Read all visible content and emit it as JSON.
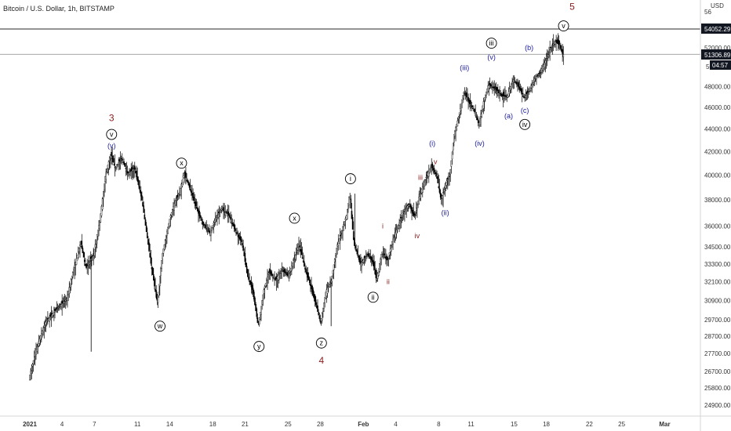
{
  "header": {
    "symbol": "Bitcoin / U.S. Dollar, 1h, BITSTAMP"
  },
  "currency_label": "USD",
  "price_badges": {
    "resistance": "54052.29",
    "last": "51306.89",
    "countdown": "04:57",
    "top_partial": "56",
    "hidden_partial": "50"
  },
  "colors": {
    "candle": "#000000",
    "dark_red_labels": "#8b1a1a",
    "blue_labels": "#1a1aa0",
    "black_labels": "#000000",
    "badge_bg": "#131722",
    "badge_text": "#ffffff"
  },
  "chart_data": {
    "type": "line",
    "title": "Bitcoin / U.S. Dollar, 1h, BITSTAMP",
    "xlabel": "",
    "ylabel": "",
    "y_scale": "log",
    "ylim": [
      23900,
      57000
    ],
    "x_ticks": [
      "2021",
      "4",
      "7",
      "11",
      "14",
      "18",
      "21",
      "25",
      "28",
      "Feb",
      "4",
      "8",
      "11",
      "15",
      "18",
      "22",
      "25",
      "Mar"
    ],
    "x_tick_days": [
      0,
      3,
      6,
      10,
      13,
      17,
      20,
      24,
      27,
      31,
      34,
      38,
      41,
      45,
      48,
      52,
      55,
      59
    ],
    "y_ticks": [
      24900,
      25800,
      26700,
      27700,
      28700,
      29700,
      30900,
      32100,
      33300,
      34500,
      36000,
      38000,
      40000,
      42000,
      44000,
      46000,
      48000,
      52000
    ],
    "y_tick_labels": [
      "24900.00",
      "25800.00",
      "26700.00",
      "27700.00",
      "28700.00",
      "29700.00",
      "30900.00",
      "32100.00",
      "33300.00",
      "34500.00",
      "36000.00",
      "38000.00",
      "40000.00",
      "42000.00",
      "44000.00",
      "46000.00",
      "48000.00",
      "52000.00"
    ],
    "horizontal_lines": [
      54052.29,
      51306.89
    ],
    "price_path": [
      [
        0.0,
        26300
      ],
      [
        0.7,
        28000
      ],
      [
        1.5,
        29500
      ],
      [
        2.5,
        30300
      ],
      [
        3.5,
        31000
      ],
      [
        4.0,
        32500
      ],
      [
        4.8,
        34800
      ],
      [
        5.3,
        33000
      ],
      [
        5.7,
        33600
      ],
      [
        6.0,
        34000
      ],
      [
        6.6,
        36500
      ],
      [
        7.1,
        40000
      ],
      [
        7.6,
        41800
      ],
      [
        8.0,
        40600
      ],
      [
        8.6,
        41400
      ],
      [
        9.2,
        40100
      ],
      [
        9.8,
        40600
      ],
      [
        10.5,
        38000
      ],
      [
        11.3,
        33500
      ],
      [
        11.9,
        30800
      ],
      [
        12.4,
        34000
      ],
      [
        13.1,
        36600
      ],
      [
        13.6,
        38000
      ],
      [
        14.0,
        38600
      ],
      [
        14.4,
        40200
      ],
      [
        15.0,
        38800
      ],
      [
        15.6,
        37300
      ],
      [
        16.1,
        36200
      ],
      [
        16.8,
        35500
      ],
      [
        17.3,
        36500
      ],
      [
        17.9,
        37300
      ],
      [
        18.6,
        36800
      ],
      [
        19.2,
        35600
      ],
      [
        19.8,
        34800
      ],
      [
        20.3,
        32500
      ],
      [
        20.8,
        31500
      ],
      [
        21.3,
        29300
      ],
      [
        21.8,
        31500
      ],
      [
        22.3,
        32800
      ],
      [
        22.9,
        32200
      ],
      [
        23.5,
        32900
      ],
      [
        24.1,
        32500
      ],
      [
        24.6,
        33600
      ],
      [
        25.1,
        34700
      ],
      [
        25.6,
        33100
      ],
      [
        26.1,
        32000
      ],
      [
        26.6,
        30800
      ],
      [
        27.1,
        29500
      ],
      [
        27.6,
        31500
      ],
      [
        28.1,
        32200
      ],
      [
        28.6,
        34500
      ],
      [
        29.0,
        35500
      ],
      [
        29.5,
        36800
      ],
      [
        29.8,
        38500
      ],
      [
        30.2,
        34700
      ],
      [
        30.8,
        33300
      ],
      [
        31.4,
        34000
      ],
      [
        31.9,
        33500
      ],
      [
        32.3,
        32200
      ],
      [
        32.8,
        34200
      ],
      [
        33.3,
        33500
      ],
      [
        33.8,
        35000
      ],
      [
        34.3,
        36000
      ],
      [
        34.8,
        37100
      ],
      [
        35.3,
        37700
      ],
      [
        35.8,
        36700
      ],
      [
        36.3,
        38400
      ],
      [
        36.9,
        39800
      ],
      [
        37.4,
        40800
      ],
      [
        37.9,
        39800
      ],
      [
        38.3,
        38000
      ],
      [
        38.8,
        39500
      ],
      [
        39.1,
        39900
      ],
      [
        39.5,
        43500
      ],
      [
        39.9,
        45000
      ],
      [
        40.4,
        47500
      ],
      [
        40.9,
        46500
      ],
      [
        41.4,
        45600
      ],
      [
        41.8,
        44400
      ],
      [
        42.3,
        46800
      ],
      [
        42.7,
        48200
      ],
      [
        43.3,
        47800
      ],
      [
        43.9,
        47100
      ],
      [
        44.4,
        47000
      ],
      [
        45.0,
        48700
      ],
      [
        45.5,
        48000
      ],
      [
        46.0,
        46900
      ],
      [
        46.5,
        47700
      ],
      [
        47.0,
        48800
      ],
      [
        47.5,
        49400
      ],
      [
        48.1,
        50900
      ],
      [
        48.5,
        52000
      ],
      [
        48.9,
        52700
      ],
      [
        49.3,
        52300
      ],
      [
        49.6,
        51300
      ]
    ],
    "wave_labels": [
      {
        "text": "3",
        "day": 7.6,
        "price": 45000,
        "color": "#8b1a1a",
        "circled": false,
        "size": 12
      },
      {
        "text": "v",
        "day": 7.6,
        "price": 43500,
        "color": "#000000",
        "circled": true,
        "size": 9
      },
      {
        "text": "(v)",
        "day": 7.6,
        "price": 42500,
        "color": "#1a1aa0",
        "circled": false,
        "size": 9
      },
      {
        "text": "w",
        "day": 12.1,
        "price": 29300,
        "color": "#000000",
        "circled": true,
        "size": 9
      },
      {
        "text": "x",
        "day": 14.1,
        "price": 41000,
        "color": "#000000",
        "circled": true,
        "size": 9
      },
      {
        "text": "y",
        "day": 21.3,
        "price": 28100,
        "color": "#000000",
        "circled": true,
        "size": 9
      },
      {
        "text": "x",
        "day": 24.6,
        "price": 36600,
        "color": "#000000",
        "circled": true,
        "size": 9
      },
      {
        "text": "z",
        "day": 27.1,
        "price": 28300,
        "color": "#000000",
        "circled": true,
        "size": 9
      },
      {
        "text": "4",
        "day": 27.1,
        "price": 27300,
        "color": "#8b1a1a",
        "circled": false,
        "size": 12
      },
      {
        "text": "i",
        "day": 29.8,
        "price": 39700,
        "color": "#000000",
        "circled": true,
        "size": 9
      },
      {
        "text": "ii",
        "day": 31.9,
        "price": 31100,
        "color": "#000000",
        "circled": true,
        "size": 9
      },
      {
        "text": "i",
        "day": 32.8,
        "price": 36000,
        "color": "#8b1a1a",
        "circled": false,
        "size": 9
      },
      {
        "text": "ii",
        "day": 33.3,
        "price": 32100,
        "color": "#8b1a1a",
        "circled": false,
        "size": 9
      },
      {
        "text": "iii",
        "day": 36.3,
        "price": 39800,
        "color": "#8b1a1a",
        "circled": false,
        "size": 9
      },
      {
        "text": "iv",
        "day": 36.0,
        "price": 35300,
        "color": "#8b1a1a",
        "circled": false,
        "size": 9
      },
      {
        "text": "v",
        "day": 37.7,
        "price": 41100,
        "color": "#8b1a1a",
        "circled": false,
        "size": 9
      },
      {
        "text": "(i)",
        "day": 37.4,
        "price": 42700,
        "color": "#1a1aa0",
        "circled": false,
        "size": 9
      },
      {
        "text": "(ii)",
        "day": 38.6,
        "price": 37000,
        "color": "#1a1aa0",
        "circled": false,
        "size": 9
      },
      {
        "text": "(iii)",
        "day": 40.4,
        "price": 49900,
        "color": "#1a1aa0",
        "circled": false,
        "size": 9
      },
      {
        "text": "(iv)",
        "day": 41.8,
        "price": 42700,
        "color": "#1a1aa0",
        "circled": false,
        "size": 9
      },
      {
        "text": "iii",
        "day": 42.9,
        "price": 52500,
        "color": "#000000",
        "circled": true,
        "size": 9
      },
      {
        "text": "(v)",
        "day": 42.9,
        "price": 51000,
        "color": "#1a1aa0",
        "circled": false,
        "size": 9
      },
      {
        "text": "(a)",
        "day": 44.5,
        "price": 45200,
        "color": "#1a1aa0",
        "circled": false,
        "size": 9
      },
      {
        "text": "(b)",
        "day": 46.4,
        "price": 52000,
        "color": "#1a1aa0",
        "circled": false,
        "size": 9
      },
      {
        "text": "(c)",
        "day": 46.0,
        "price": 45700,
        "color": "#1a1aa0",
        "circled": false,
        "size": 9
      },
      {
        "text": "iv",
        "day": 46.0,
        "price": 44400,
        "color": "#000000",
        "circled": true,
        "size": 9
      },
      {
        "text": "v",
        "day": 49.6,
        "price": 54400,
        "color": "#000000",
        "circled": true,
        "size": 9
      },
      {
        "text": "5",
        "day": 50.4,
        "price": 56600,
        "color": "#8b1a1a",
        "circled": false,
        "size": 12
      }
    ]
  }
}
